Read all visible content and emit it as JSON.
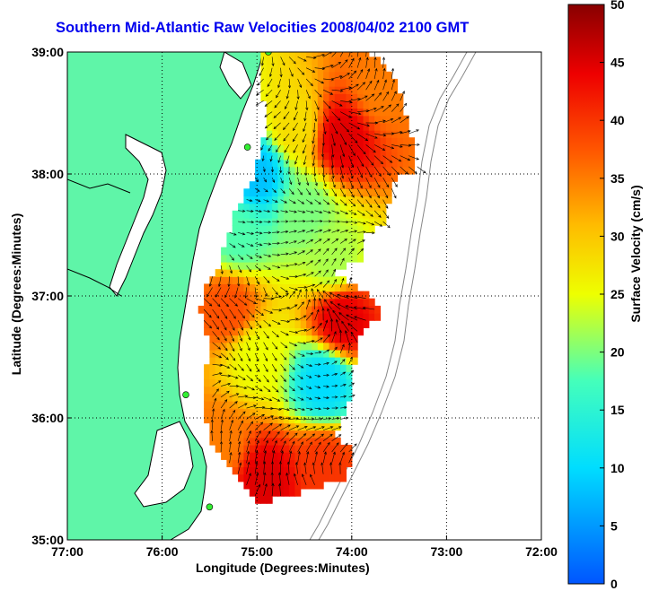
{
  "title": "Southern Mid-Atlantic Raw Velocities 2008/04/02 2100 GMT",
  "xlabel": "Longitude (Degrees:Minutes)",
  "ylabel": "Latitude (Degrees:Minutes)",
  "colorbar": {
    "label": "Surface Velocity (cm/s)",
    "min": 0,
    "max": 50,
    "ticks": [
      "0",
      "5",
      "10",
      "15",
      "20",
      "25",
      "30",
      "35",
      "40",
      "45",
      "50"
    ]
  },
  "colors": {
    "land": "#5ff5a8",
    "water": "#ffffff",
    "coast": "#000000",
    "title": "#0000ee",
    "station": "#33ee33"
  },
  "chart_data": {
    "type": "map",
    "xlim": [
      -77,
      -72
    ],
    "ylim": [
      35,
      39
    ],
    "x_tick_labels": [
      "77:00",
      "76:00",
      "75:00",
      "74:00",
      "73:00",
      "72:00"
    ],
    "y_tick_labels": [
      "35:00",
      "36:00",
      "37:00",
      "38:00",
      "39:00"
    ],
    "grid": "dotted",
    "stations": [
      {
        "lon": -74.88,
        "lat": 39.0
      },
      {
        "lon": -75.1,
        "lat": 38.22
      },
      {
        "lon": -75.75,
        "lat": 36.19
      },
      {
        "lon": -75.5,
        "lat": 35.27
      }
    ],
    "velocity_regions": [
      {
        "lon": -74.6,
        "lat": 38.4,
        "speed": 28
      },
      {
        "lon": -74.1,
        "lat": 38.3,
        "speed": 45
      },
      {
        "lon": -73.7,
        "lat": 38.7,
        "speed": 35
      },
      {
        "lon": -75.0,
        "lat": 38.0,
        "speed": 8
      },
      {
        "lon": -74.5,
        "lat": 37.7,
        "speed": 20
      },
      {
        "lon": -74.2,
        "lat": 37.3,
        "speed": 22
      },
      {
        "lon": -75.2,
        "lat": 37.5,
        "speed": 18
      },
      {
        "lon": -75.3,
        "lat": 36.9,
        "speed": 38
      },
      {
        "lon": -74.1,
        "lat": 36.8,
        "speed": 45
      },
      {
        "lon": -75.0,
        "lat": 36.5,
        "speed": 25
      },
      {
        "lon": -74.3,
        "lat": 36.3,
        "speed": 10
      },
      {
        "lon": -75.4,
        "lat": 35.8,
        "speed": 35
      },
      {
        "lon": -74.9,
        "lat": 35.5,
        "speed": 45
      },
      {
        "lon": -74.3,
        "lat": 35.6,
        "speed": 40
      }
    ]
  }
}
